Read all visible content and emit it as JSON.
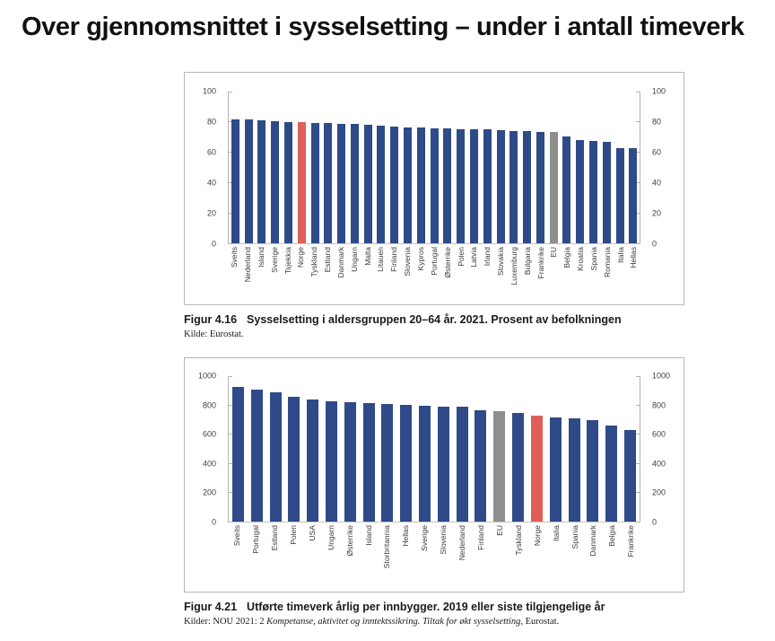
{
  "title": "Over gjennomsnittet i sysselsetting – under i antall timeverk",
  "palette": {
    "bar_blue": "#2e4a88",
    "bar_red": "#dd5f58",
    "bar_gray": "#8e8e8e",
    "axis_line": "#b3b3b3",
    "tick_text": "#3f3f3f"
  },
  "figures": [
    {
      "label": "Figur 4.16",
      "caption": "Sysselsetting i aldersgruppen 20–64 år. 2021. Prosent av befolkningen",
      "source_prefix": "Kilde: Eurostat.",
      "source_italic": "",
      "source_suffix": ""
    },
    {
      "label": "Figur 4.21",
      "caption": "Utførte timeverk årlig per innbygger. 2019 eller siste tilgjengelige år",
      "source_prefix": "Kilder: NOU 2021: 2 ",
      "source_italic": "Kompetanse, aktivitet og inntektssikring. Tiltak for økt sysselsetting",
      "source_suffix": ", Eurostat."
    }
  ],
  "chart_data": [
    {
      "type": "bar",
      "title": "Sysselsetting i aldersgruppen 20–64 år. 2021. Prosent av befolkningen",
      "xlabel": "",
      "ylabel": "",
      "ylim": [
        0,
        100
      ],
      "yticks": [
        0,
        20,
        40,
        60,
        80,
        100
      ],
      "grid": false,
      "dual_axis_labels": true,
      "legend": "none",
      "categories": [
        "Sveits",
        "Nederland",
        "Island",
        "Sverige",
        "Tsjekkia",
        "Norge",
        "Tyskland",
        "Estland",
        "Danmark",
        "Ungarn",
        "Malta",
        "Litauen",
        "Finland",
        "Slovenia",
        "Kypros",
        "Portugal",
        "Østerrike",
        "Polen",
        "Latvia",
        "Irland",
        "Slovakia",
        "Luxemburg",
        "Bulgaria",
        "Frankrike",
        "EU",
        "Belgia",
        "Kroatia",
        "Spania",
        "Romania",
        "Italia",
        "Hellas"
      ],
      "values": [
        81.7,
        81.6,
        81.0,
        80.6,
        80.0,
        79.6,
        79.4,
        79.2,
        79.0,
        78.8,
        78.2,
        77.6,
        77.2,
        76.6,
        76.1,
        75.9,
        75.7,
        75.4,
        75.1,
        74.9,
        74.6,
        74.1,
        73.9,
        73.5,
        73.1,
        70.7,
        68.2,
        67.7,
        67.1,
        62.7,
        62.6
      ],
      "highlights": {
        "red": "Norge",
        "gray": "EU"
      }
    },
    {
      "type": "bar",
      "title": "Utførte timeverk årlig per innbygger. 2019 eller siste tilgjengelige år",
      "xlabel": "",
      "ylabel": "",
      "ylim": [
        0,
        1000
      ],
      "yticks": [
        0,
        200,
        400,
        600,
        800,
        1000
      ],
      "grid": false,
      "dual_axis_labels": true,
      "legend": "none",
      "categories": [
        "Sveits",
        "Portugal",
        "Estland",
        "Polen",
        "USA",
        "Ungarn",
        "Østerrike",
        "Island",
        "Storbritannia",
        "Hellas",
        "Sverige",
        "Slovenia",
        "Nederland",
        "Finland",
        "EU",
        "Tyskland",
        "Norge",
        "Italia",
        "Spania",
        "Danmark",
        "Belgia",
        "Frankrike"
      ],
      "values": [
        928,
        906,
        890,
        858,
        838,
        830,
        818,
        815,
        806,
        804,
        796,
        790,
        788,
        764,
        760,
        745,
        728,
        714,
        712,
        700,
        662,
        628
      ],
      "highlights": {
        "red": "Norge",
        "gray": "EU"
      }
    }
  ]
}
